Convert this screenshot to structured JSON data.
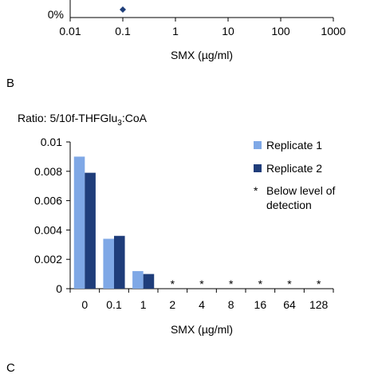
{
  "chart_data": [
    {
      "type": "scatter",
      "xscale": "log",
      "xlabel": "SMX (µg/ml)",
      "ytick_labels": [
        "0%"
      ],
      "xtick_labels": [
        "0.01",
        "0.1",
        "1",
        "10",
        "100",
        "1000"
      ],
      "xlim": [
        0.01,
        1000
      ],
      "points": [
        {
          "x": 0.1,
          "y": 0
        }
      ],
      "marker_color": "#1f3f7a"
    },
    {
      "type": "bar",
      "panel_label": "B",
      "title": "Ratio: 5/10f-THFGlu",
      "title_subscript": "3",
      "title_suffix": ":CoA",
      "categories": [
        "0",
        "0.1",
        "1",
        "2",
        "4",
        "8",
        "16",
        "64",
        "128"
      ],
      "series": [
        {
          "name": "Replicate 1",
          "color": "#7fa8e6",
          "values": [
            0.009,
            0.0034,
            0.0012,
            null,
            null,
            null,
            null,
            null,
            null
          ]
        },
        {
          "name": "Replicate 2",
          "color": "#1f3d7a",
          "values": [
            0.0079,
            0.0036,
            0.001,
            null,
            null,
            null,
            null,
            null,
            null
          ]
        }
      ],
      "below_detection": [
        false,
        false,
        false,
        true,
        true,
        true,
        true,
        true,
        true
      ],
      "below_detection_marker": "*",
      "below_detection_label": "Below level of detection",
      "below_detection_label_lines": [
        "Below level of",
        "detection"
      ],
      "yticks": [
        0,
        0.002,
        0.004,
        0.006,
        0.008,
        0.01
      ],
      "ytick_labels": [
        "0",
        "0.002",
        "0.004",
        "0.006",
        "0.008",
        "0.01"
      ],
      "ylim": [
        0,
        0.01
      ],
      "xlabel": "SMX (µg/ml)",
      "legend_position": "top-right"
    }
  ],
  "panel_c_label": "C"
}
